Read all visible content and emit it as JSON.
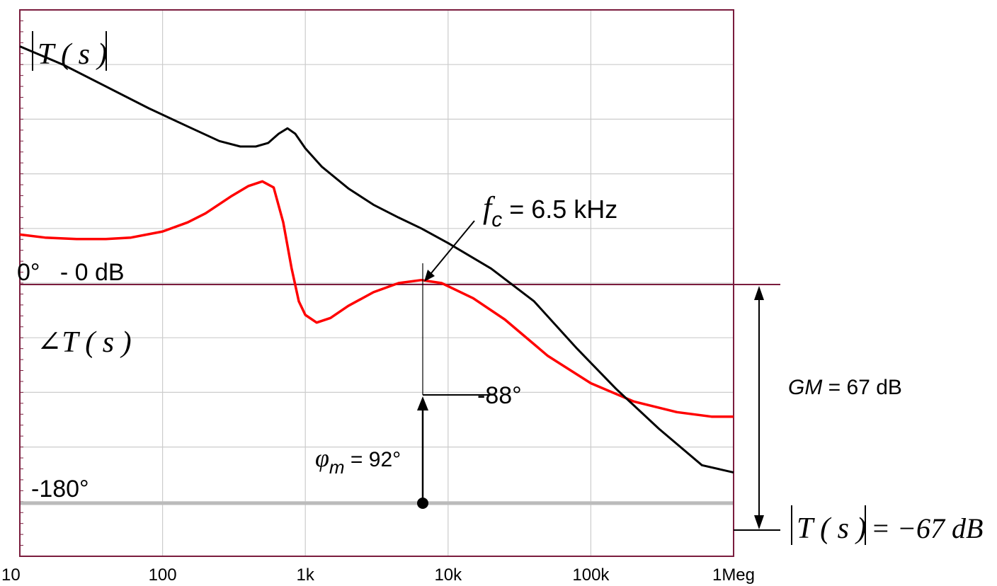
{
  "chart_data": {
    "type": "line",
    "title": "",
    "xlabel": "",
    "ylabel": "",
    "x_scale": "log",
    "xlim": [
      10,
      1000000
    ],
    "x_tick_values": [
      10,
      100,
      1000,
      10000,
      100000,
      1000000
    ],
    "x_tick_labels": [
      "10",
      "100",
      "1k",
      "10k",
      "100k",
      "1Meg"
    ],
    "grid": true,
    "legend": "none",
    "series": [
      {
        "id": "magnitude",
        "label": "|T(s)|",
        "color": "#000000",
        "unit": "dB",
        "ylim": [
          -90,
          60
        ],
        "x": [
          10,
          20,
          40,
          80,
          150,
          250,
          350,
          450,
          550,
          650,
          750,
          850,
          1000,
          1300,
          2000,
          3000,
          4500,
          6500,
          10000,
          20000,
          40000,
          80000,
          150000,
          300000,
          600000,
          1000000
        ],
        "y": [
          50,
          45,
          39,
          33,
          28,
          24,
          22.5,
          22.5,
          23.5,
          26,
          27.5,
          26,
          22,
          17,
          11,
          6.5,
          3,
          0,
          -4,
          -11,
          -20,
          -33,
          -44,
          -55,
          -65,
          -67
        ]
      },
      {
        "id": "phase",
        "label": "∠T(s)",
        "color": "#ff0000",
        "unit": "deg",
        "ylim": [
          -270,
          90
        ],
        "x": [
          10,
          15,
          25,
          40,
          60,
          100,
          150,
          200,
          300,
          400,
          500,
          600,
          700,
          800,
          900,
          1000,
          1200,
          1500,
          2000,
          3000,
          4500,
          6500,
          9000,
          15000,
          25000,
          50000,
          100000,
          200000,
          400000,
          700000,
          1000000
        ],
        "y": [
          -58,
          -60,
          -61,
          -61,
          -60,
          -56,
          -50,
          -44,
          -33,
          -26,
          -23,
          -27,
          -50,
          -80,
          -102,
          -111,
          -116,
          -113,
          -105,
          -96,
          -90,
          -88,
          -90,
          -100,
          -114,
          -138,
          -156,
          -168,
          -175,
          -178,
          -178
        ]
      }
    ],
    "reference_lines": [
      {
        "id": "zero-line",
        "label": "0°   - 0 dB"
      },
      {
        "id": "minus180-line",
        "label": "-180°"
      }
    ],
    "annotations": {
      "crossover": {
        "prefix": "f",
        "subscript": "c",
        "text": " = 6.5 kHz",
        "x": 6500
      },
      "phase_at_fc": {
        "text": "-88°",
        "value": -88
      },
      "phase_margin": {
        "prefix": "φ",
        "subscript": "m",
        "text": " = 92°",
        "value": 92
      },
      "gain_margin": {
        "prefix": "GM",
        "text": " = 67 dB",
        "value": 67
      },
      "magnitude_label": {
        "text": "T ( s )"
      },
      "phase_label": {
        "text": "∠T ( s )"
      },
      "magnitude_at_end": {
        "lhs": "T ( s )",
        "rhs": "= −67 dB"
      }
    },
    "colors": {
      "frame": "#7a1c3d",
      "grid": "#cccccc",
      "minus180": "#bbbbbb"
    }
  }
}
